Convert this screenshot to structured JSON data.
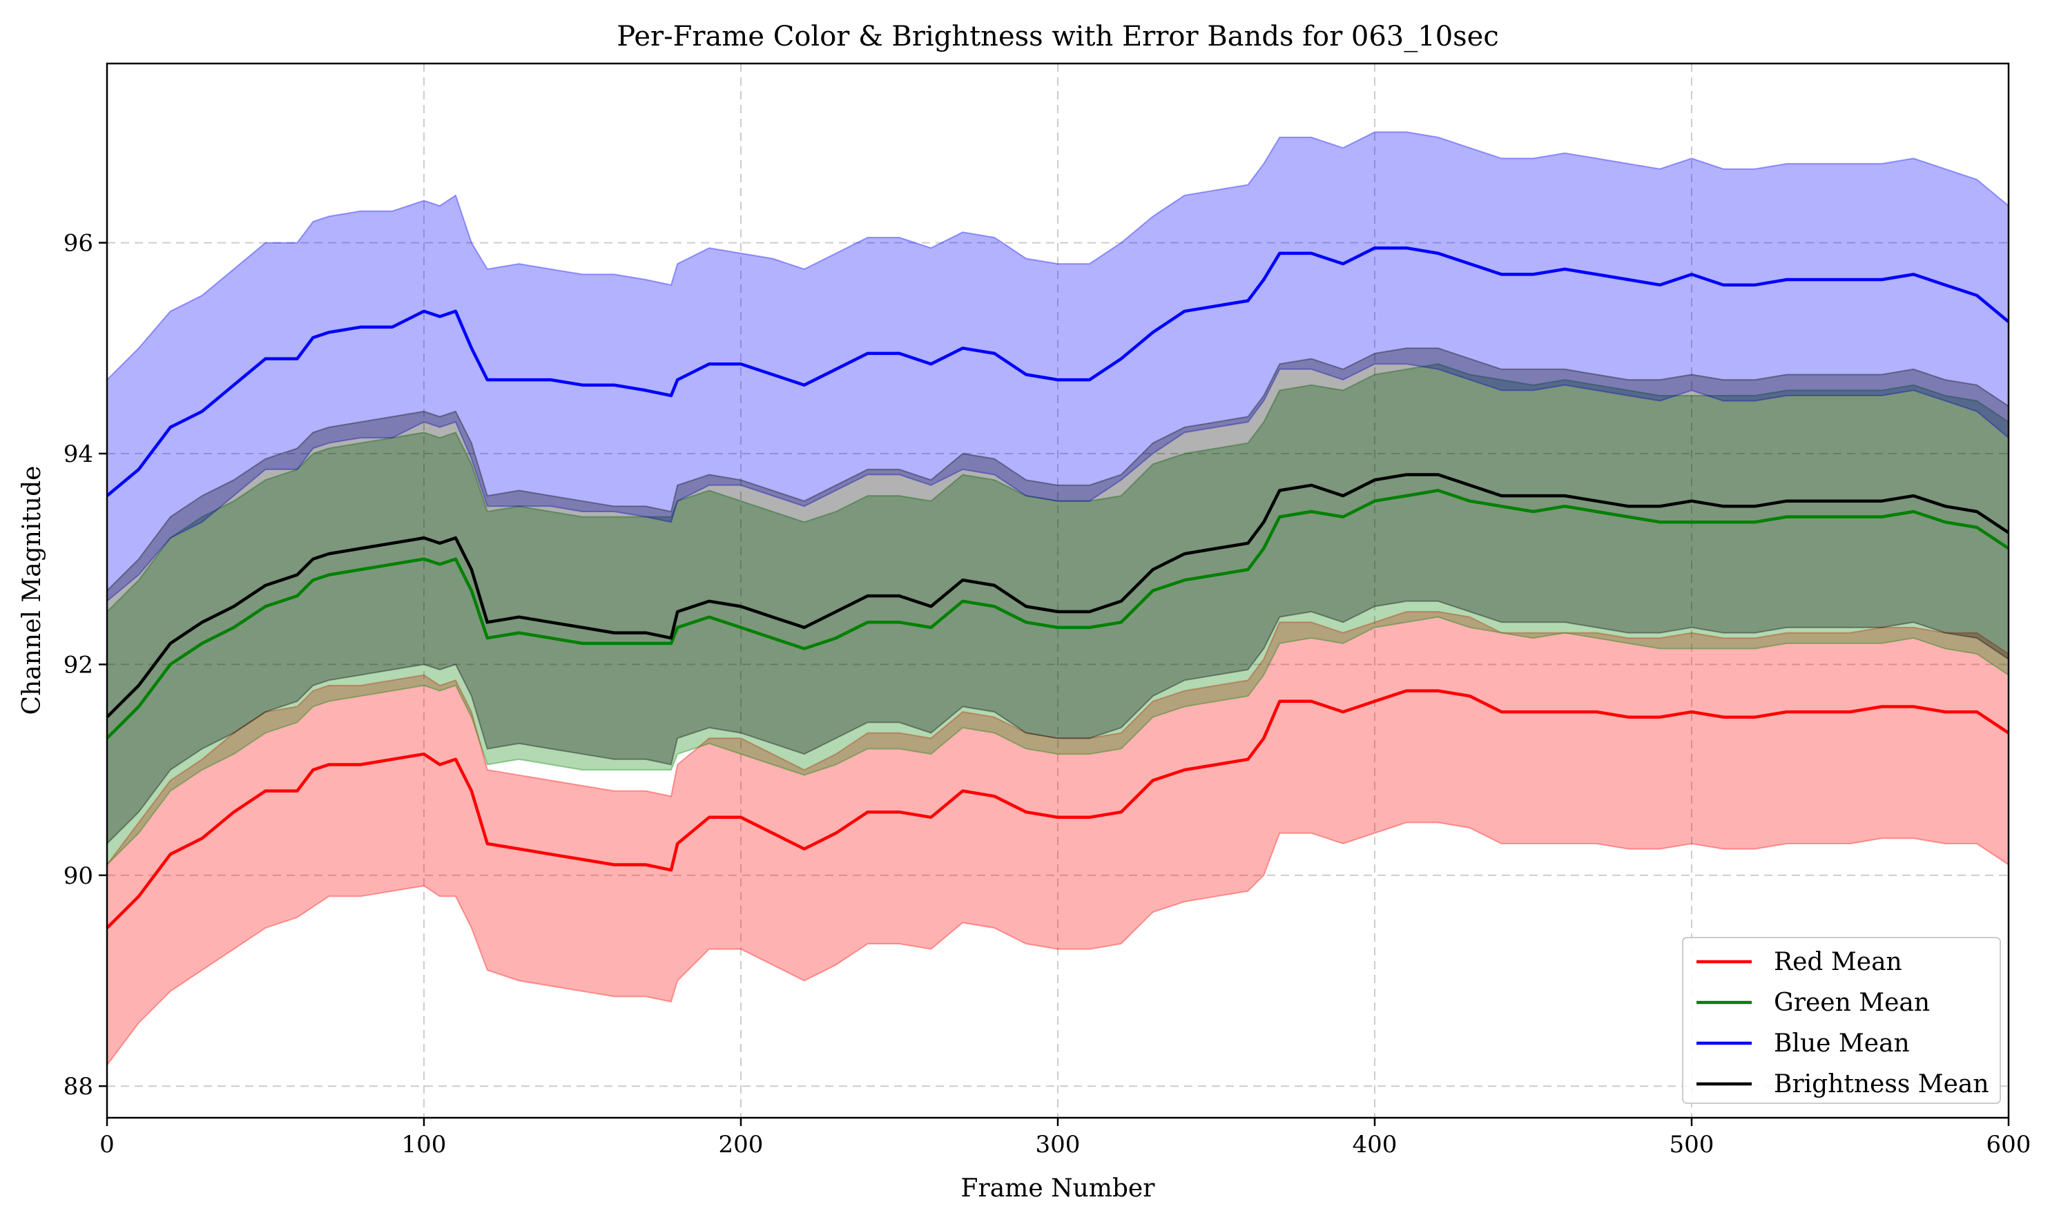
{
  "chart_data": {
    "type": "line",
    "title": "Per-Frame Color & Brightness with Error Bands for 063_10sec",
    "xlabel": "Frame Number",
    "ylabel": "Channel Magnitude",
    "xlim": [
      0,
      600
    ],
    "ylim": [
      87.7,
      97.7
    ],
    "xticks": [
      0,
      100,
      200,
      300,
      400,
      500,
      600
    ],
    "yticks": [
      88,
      90,
      92,
      94,
      96
    ],
    "grid": true,
    "legend_position": "bottom-right",
    "x": [
      0,
      10,
      20,
      30,
      40,
      50,
      60,
      65,
      70,
      80,
      90,
      100,
      105,
      110,
      115,
      120,
      130,
      140,
      150,
      160,
      170,
      178,
      180,
      190,
      200,
      210,
      220,
      230,
      240,
      250,
      260,
      270,
      280,
      290,
      300,
      310,
      320,
      330,
      340,
      350,
      360,
      365,
      370,
      380,
      390,
      400,
      410,
      420,
      430,
      440,
      450,
      460,
      470,
      480,
      490,
      500,
      510,
      520,
      530,
      540,
      550,
      560,
      570,
      580,
      590,
      600
    ],
    "series": [
      {
        "name": "Red Mean",
        "color": "#ff0000",
        "band_color": "#ff0000",
        "values": [
          89.5,
          89.8,
          90.2,
          90.35,
          90.6,
          90.8,
          90.8,
          91.0,
          91.05,
          91.05,
          91.1,
          91.15,
          91.05,
          91.1,
          90.8,
          90.3,
          90.25,
          90.2,
          90.15,
          90.1,
          90.1,
          90.05,
          90.3,
          90.55,
          90.55,
          90.4,
          90.25,
          90.4,
          90.6,
          90.6,
          90.55,
          90.8,
          90.75,
          90.6,
          90.55,
          90.55,
          90.6,
          90.9,
          91.0,
          91.05,
          91.1,
          91.3,
          91.65,
          91.65,
          91.55,
          91.65,
          91.75,
          91.75,
          91.7,
          91.55,
          91.55,
          91.55,
          91.55,
          91.5,
          91.5,
          91.55,
          91.5,
          91.5,
          91.55,
          91.55,
          91.55,
          91.6,
          91.6,
          91.55,
          91.55,
          91.35
        ],
        "lower": [
          88.2,
          88.6,
          88.9,
          89.1,
          89.3,
          89.5,
          89.6,
          89.7,
          89.8,
          89.8,
          89.85,
          89.9,
          89.8,
          89.8,
          89.5,
          89.1,
          89.0,
          88.95,
          88.9,
          88.85,
          88.85,
          88.8,
          89.0,
          89.3,
          89.3,
          89.15,
          89.0,
          89.15,
          89.35,
          89.35,
          89.3,
          89.55,
          89.5,
          89.35,
          89.3,
          89.3,
          89.35,
          89.65,
          89.75,
          89.8,
          89.85,
          90.0,
          90.4,
          90.4,
          90.3,
          90.4,
          90.5,
          90.5,
          90.45,
          90.3,
          90.3,
          90.3,
          90.3,
          90.25,
          90.25,
          90.3,
          90.25,
          90.25,
          90.3,
          90.3,
          90.3,
          90.35,
          90.35,
          90.3,
          90.3,
          90.1
        ],
        "upper": [
          90.1,
          90.5,
          90.9,
          91.1,
          91.35,
          91.55,
          91.6,
          91.75,
          91.8,
          91.8,
          91.85,
          91.9,
          91.8,
          91.85,
          91.55,
          91.0,
          90.95,
          90.9,
          90.85,
          90.8,
          90.8,
          90.75,
          91.05,
          91.3,
          91.3,
          91.15,
          91.0,
          91.15,
          91.35,
          91.35,
          91.3,
          91.55,
          91.5,
          91.35,
          91.3,
          91.3,
          91.35,
          91.65,
          91.75,
          91.8,
          91.85,
          92.05,
          92.4,
          92.4,
          92.3,
          92.4,
          92.5,
          92.5,
          92.45,
          92.3,
          92.3,
          92.3,
          92.3,
          92.25,
          92.25,
          92.3,
          92.25,
          92.25,
          92.3,
          92.3,
          92.3,
          92.35,
          92.35,
          92.3,
          92.3,
          92.1
        ]
      },
      {
        "name": "Green Mean",
        "color": "#008000",
        "band_color": "#008000",
        "values": [
          91.3,
          91.6,
          92.0,
          92.2,
          92.35,
          92.55,
          92.65,
          92.8,
          92.85,
          92.9,
          92.95,
          93.0,
          92.95,
          93.0,
          92.7,
          92.25,
          92.3,
          92.25,
          92.2,
          92.2,
          92.2,
          92.2,
          92.35,
          92.45,
          92.35,
          92.25,
          92.15,
          92.25,
          92.4,
          92.4,
          92.35,
          92.6,
          92.55,
          92.4,
          92.35,
          92.35,
          92.4,
          92.7,
          92.8,
          92.85,
          92.9,
          93.1,
          93.4,
          93.45,
          93.4,
          93.55,
          93.6,
          93.65,
          93.55,
          93.5,
          93.45,
          93.5,
          93.45,
          93.4,
          93.35,
          93.35,
          93.35,
          93.35,
          93.4,
          93.4,
          93.4,
          93.4,
          93.45,
          93.35,
          93.3,
          93.1
        ],
        "lower": [
          90.1,
          90.4,
          90.8,
          91.0,
          91.15,
          91.35,
          91.45,
          91.6,
          91.65,
          91.7,
          91.75,
          91.8,
          91.75,
          91.8,
          91.5,
          91.05,
          91.1,
          91.05,
          91.0,
          91.0,
          91.0,
          91.0,
          91.15,
          91.25,
          91.15,
          91.05,
          90.95,
          91.05,
          91.2,
          91.2,
          91.15,
          91.4,
          91.35,
          91.2,
          91.15,
          91.15,
          91.2,
          91.5,
          91.6,
          91.65,
          91.7,
          91.9,
          92.2,
          92.25,
          92.2,
          92.35,
          92.4,
          92.45,
          92.35,
          92.3,
          92.25,
          92.3,
          92.25,
          92.2,
          92.15,
          92.15,
          92.15,
          92.15,
          92.2,
          92.2,
          92.2,
          92.2,
          92.25,
          92.15,
          92.1,
          91.9
        ],
        "upper": [
          92.5,
          92.8,
          93.2,
          93.4,
          93.55,
          93.75,
          93.85,
          94.0,
          94.05,
          94.1,
          94.15,
          94.2,
          94.15,
          94.2,
          93.9,
          93.45,
          93.5,
          93.45,
          93.4,
          93.4,
          93.4,
          93.4,
          93.55,
          93.65,
          93.55,
          93.45,
          93.35,
          93.45,
          93.6,
          93.6,
          93.55,
          93.8,
          93.75,
          93.6,
          93.55,
          93.55,
          93.6,
          93.9,
          94.0,
          94.05,
          94.1,
          94.3,
          94.6,
          94.65,
          94.6,
          94.75,
          94.8,
          94.85,
          94.75,
          94.7,
          94.65,
          94.7,
          94.65,
          94.6,
          94.55,
          94.55,
          94.55,
          94.55,
          94.6,
          94.6,
          94.6,
          94.6,
          94.65,
          94.55,
          94.5,
          94.3
        ]
      },
      {
        "name": "Blue Mean",
        "color": "#0000ff",
        "band_color": "#0000ff",
        "values": [
          93.6,
          93.85,
          94.25,
          94.4,
          94.65,
          94.9,
          94.9,
          95.1,
          95.15,
          95.2,
          95.2,
          95.35,
          95.3,
          95.35,
          95.0,
          94.7,
          94.7,
          94.7,
          94.65,
          94.65,
          94.6,
          94.55,
          94.7,
          94.85,
          94.85,
          94.75,
          94.65,
          94.8,
          94.95,
          94.95,
          94.85,
          95.0,
          94.95,
          94.75,
          94.7,
          94.7,
          94.9,
          95.15,
          95.35,
          95.4,
          95.45,
          95.65,
          95.9,
          95.9,
          95.8,
          95.95,
          95.95,
          95.9,
          95.8,
          95.7,
          95.7,
          95.75,
          95.7,
          95.65,
          95.6,
          95.7,
          95.6,
          95.6,
          95.65,
          95.65,
          95.65,
          95.65,
          95.7,
          95.6,
          95.5,
          95.25
        ],
        "lower": [
          92.6,
          92.85,
          93.2,
          93.35,
          93.6,
          93.85,
          93.85,
          94.05,
          94.1,
          94.15,
          94.15,
          94.3,
          94.25,
          94.3,
          93.95,
          93.5,
          93.5,
          93.5,
          93.45,
          93.45,
          93.4,
          93.35,
          93.55,
          93.7,
          93.7,
          93.6,
          93.5,
          93.65,
          93.8,
          93.8,
          93.7,
          93.85,
          93.8,
          93.6,
          93.55,
          93.55,
          93.75,
          94.0,
          94.2,
          94.25,
          94.3,
          94.5,
          94.8,
          94.8,
          94.7,
          94.85,
          94.85,
          94.8,
          94.7,
          94.6,
          94.6,
          94.65,
          94.6,
          94.55,
          94.5,
          94.6,
          94.5,
          94.5,
          94.55,
          94.55,
          94.55,
          94.55,
          94.6,
          94.5,
          94.4,
          94.15
        ],
        "upper": [
          94.7,
          95.0,
          95.35,
          95.5,
          95.75,
          96.0,
          96.0,
          96.2,
          96.25,
          96.3,
          96.3,
          96.4,
          96.35,
          96.45,
          96.0,
          95.75,
          95.8,
          95.75,
          95.7,
          95.7,
          95.65,
          95.6,
          95.8,
          95.95,
          95.9,
          95.85,
          95.75,
          95.9,
          96.05,
          96.05,
          95.95,
          96.1,
          96.05,
          95.85,
          95.8,
          95.8,
          96.0,
          96.25,
          96.45,
          96.5,
          96.55,
          96.75,
          97.0,
          97.0,
          96.9,
          97.05,
          97.05,
          97.0,
          96.9,
          96.8,
          96.8,
          96.85,
          96.8,
          96.75,
          96.7,
          96.8,
          96.7,
          96.7,
          96.75,
          96.75,
          96.75,
          96.75,
          96.8,
          96.7,
          96.6,
          96.35
        ]
      },
      {
        "name": "Brightness Mean",
        "color": "#000000",
        "band_color": "#000000",
        "values": [
          91.5,
          91.8,
          92.2,
          92.4,
          92.55,
          92.75,
          92.85,
          93.0,
          93.05,
          93.1,
          93.15,
          93.2,
          93.15,
          93.2,
          92.9,
          92.4,
          92.45,
          92.4,
          92.35,
          92.3,
          92.3,
          92.25,
          92.5,
          92.6,
          92.55,
          92.45,
          92.35,
          92.5,
          92.65,
          92.65,
          92.55,
          92.8,
          92.75,
          92.55,
          92.5,
          92.5,
          92.6,
          92.9,
          93.05,
          93.1,
          93.15,
          93.35,
          93.65,
          93.7,
          93.6,
          93.75,
          93.8,
          93.8,
          93.7,
          93.6,
          93.6,
          93.6,
          93.55,
          93.5,
          93.5,
          93.55,
          93.5,
          93.5,
          93.55,
          93.55,
          93.55,
          93.55,
          93.6,
          93.5,
          93.45,
          93.25
        ],
        "lower": [
          90.3,
          90.6,
          91.0,
          91.2,
          91.35,
          91.55,
          91.65,
          91.8,
          91.85,
          91.9,
          91.95,
          92.0,
          91.95,
          92.0,
          91.7,
          91.2,
          91.25,
          91.2,
          91.15,
          91.1,
          91.1,
          91.05,
          91.3,
          91.4,
          91.35,
          91.25,
          91.15,
          91.3,
          91.45,
          91.45,
          91.35,
          91.6,
          91.55,
          91.35,
          91.3,
          91.3,
          91.4,
          91.7,
          91.85,
          91.9,
          91.95,
          92.15,
          92.45,
          92.5,
          92.4,
          92.55,
          92.6,
          92.6,
          92.5,
          92.4,
          92.4,
          92.4,
          92.35,
          92.3,
          92.3,
          92.35,
          92.3,
          92.3,
          92.35,
          92.35,
          92.35,
          92.35,
          92.4,
          92.3,
          92.25,
          92.05
        ],
        "upper": [
          92.7,
          93.0,
          93.4,
          93.6,
          93.75,
          93.95,
          94.05,
          94.2,
          94.25,
          94.3,
          94.35,
          94.4,
          94.35,
          94.4,
          94.1,
          93.6,
          93.65,
          93.6,
          93.55,
          93.5,
          93.5,
          93.45,
          93.7,
          93.8,
          93.75,
          93.65,
          93.55,
          93.7,
          93.85,
          93.85,
          93.75,
          94.0,
          93.95,
          93.75,
          93.7,
          93.7,
          93.8,
          94.1,
          94.25,
          94.3,
          94.35,
          94.55,
          94.85,
          94.9,
          94.8,
          94.95,
          95.0,
          95.0,
          94.9,
          94.8,
          94.8,
          94.8,
          94.75,
          94.7,
          94.7,
          94.75,
          94.7,
          94.7,
          94.75,
          94.75,
          94.75,
          94.75,
          94.8,
          94.7,
          94.65,
          94.45
        ]
      }
    ]
  }
}
